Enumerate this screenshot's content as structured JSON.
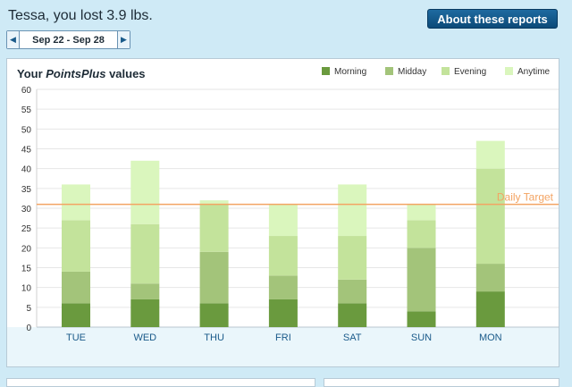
{
  "header": {
    "headline": "Tessa, you lost 3.9 lbs.",
    "about_button": "About these reports"
  },
  "date_range": {
    "label": "Sep 22 - Sep 28",
    "prev_icon": "triangle-left-icon",
    "next_icon": "triangle-right-icon"
  },
  "colors": {
    "morning": "#6a9a3e",
    "midday": "#a3c47a",
    "evening": "#c3e39b",
    "anytime": "#daf6bd",
    "target": "#f3a463",
    "axis_band": "#eaf6fb"
  },
  "chart_data": {
    "type": "bar",
    "stacked": true,
    "title_prefix": "Your ",
    "title_brand": "PointsPlus",
    "title_suffix": " values",
    "categories": [
      "TUE",
      "WED",
      "THU",
      "FRI",
      "SAT",
      "SUN",
      "MON"
    ],
    "series": [
      {
        "name": "Morning",
        "values": [
          6,
          7,
          6,
          7,
          6,
          4,
          9
        ]
      },
      {
        "name": "Midday",
        "values": [
          8,
          4,
          13,
          6,
          6,
          16,
          7
        ]
      },
      {
        "name": "Evening",
        "values": [
          13,
          15,
          12,
          10,
          11,
          7,
          24
        ]
      },
      {
        "name": "Anytime",
        "values": [
          9,
          16,
          1,
          8,
          13,
          4,
          7
        ]
      }
    ],
    "ylim": [
      0,
      60
    ],
    "yticks": [
      0,
      5,
      10,
      15,
      20,
      25,
      30,
      35,
      40,
      45,
      50,
      55,
      60
    ],
    "target_value": 31,
    "target_label": "Daily Target",
    "legend_position": "top-right",
    "grid": true
  }
}
